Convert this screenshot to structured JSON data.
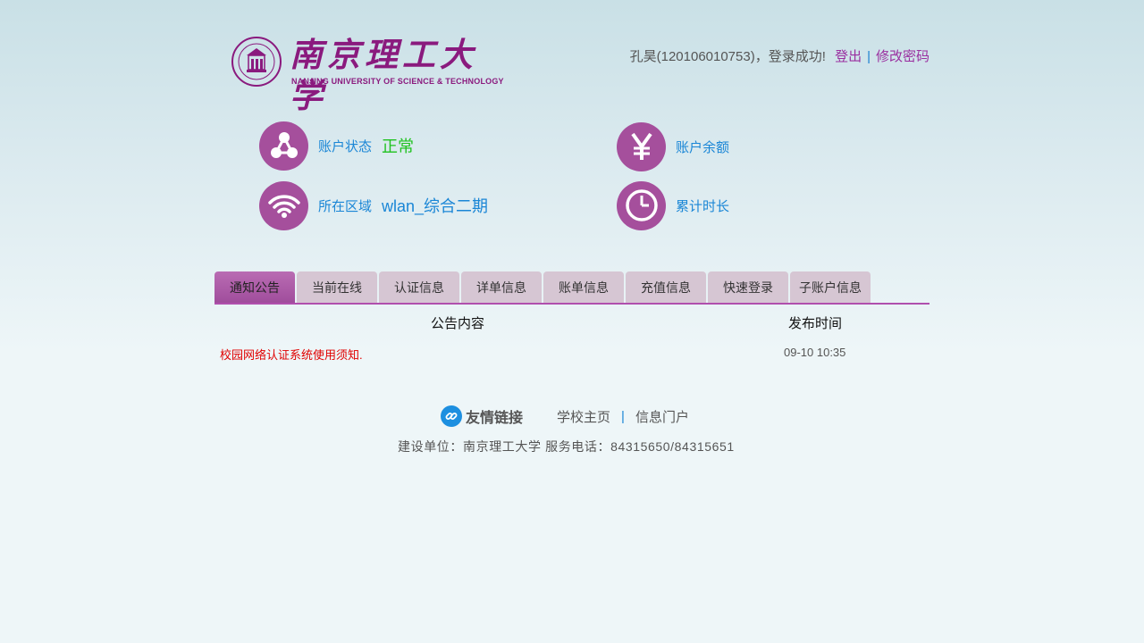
{
  "header": {
    "logo_cn": "南京理工大学",
    "logo_en": "NANJING UNIVERSITY OF SCIENCE & TECHNOLOGY",
    "user_text": "孔昊(120106010753)，登录成功!",
    "logout_label": "登出",
    "separator": "|",
    "change_password_label": "修改密码"
  },
  "status": {
    "account_state_label": "账户状态",
    "account_state_value": "正常",
    "balance_label": "账户余额",
    "region_label": "所在区域",
    "region_value": "wlan_综合二期",
    "duration_label": "累计时长"
  },
  "tabs": [
    {
      "label": "通知公告",
      "active": true
    },
    {
      "label": "当前在线"
    },
    {
      "label": "认证信息"
    },
    {
      "label": "详单信息"
    },
    {
      "label": "账单信息"
    },
    {
      "label": "充值信息"
    },
    {
      "label": "快速登录"
    },
    {
      "label": "子账户信息"
    }
  ],
  "notices": {
    "col_content": "公告内容",
    "col_time": "发布时间",
    "rows": [
      {
        "title": "校园网络认证系统使用须知.",
        "time": "09-10 10:35"
      }
    ]
  },
  "footer": {
    "links_title": "友情链接",
    "link1": "学校主页",
    "separator": "|",
    "link2": "信息门户",
    "info": "建设单位：南京理工大学 服务电话：84315650/84315651"
  },
  "colors": {
    "brand_purple": "#8a1a7e",
    "icon_purple": "#a54f9c",
    "link_blue": "#1a86d6",
    "ok_green": "#1ec21e",
    "notice_red": "#e00000"
  }
}
